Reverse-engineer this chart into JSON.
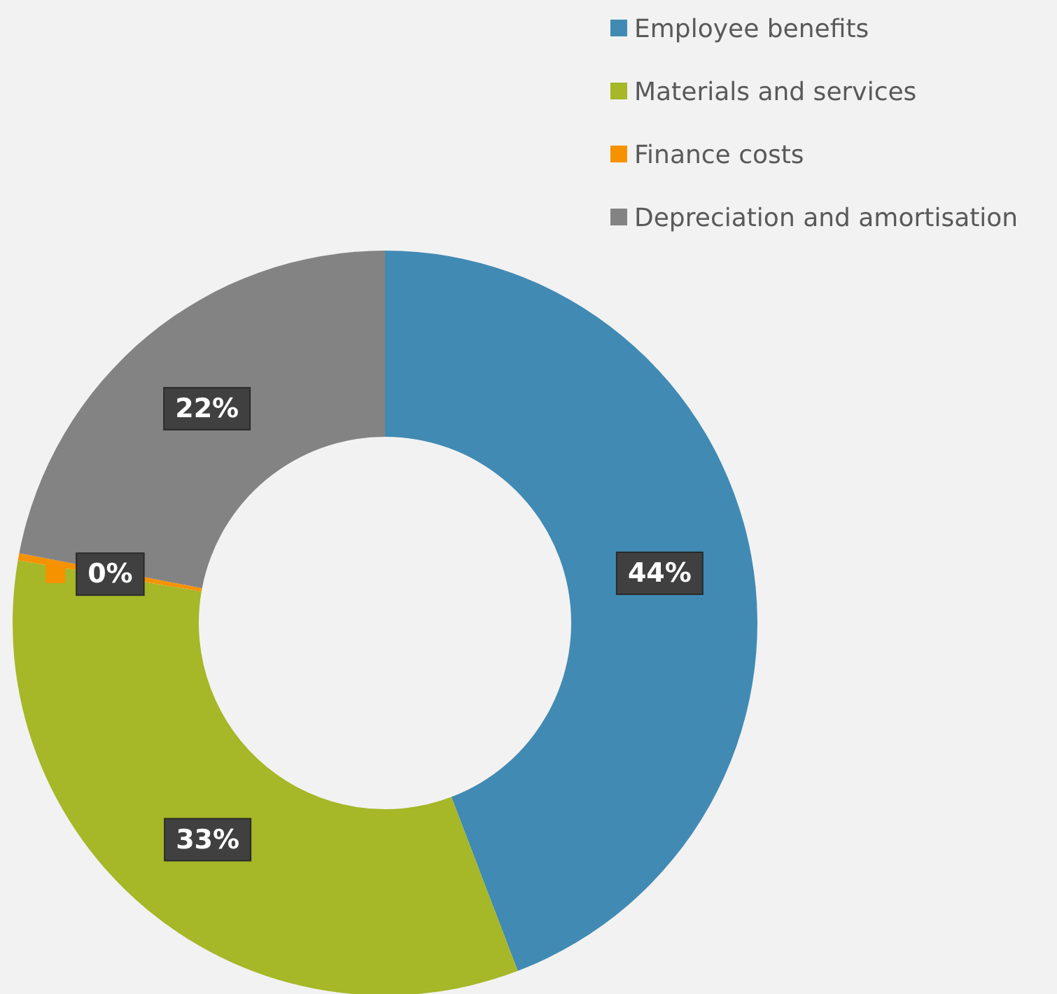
{
  "chart_data": {
    "type": "donut",
    "categories": [
      "Employee benefits",
      "Materials and services",
      "Finance costs",
      "Depreciation and amortisation"
    ],
    "values": [
      44.2,
      33.5,
      0.3,
      22.0
    ],
    "colors": [
      "#418ab3",
      "#a6b727",
      "#f69200",
      "#838383"
    ],
    "value_labels": [
      "44%",
      "33%",
      "0%",
      "22%"
    ],
    "legend": "top right"
  }
}
